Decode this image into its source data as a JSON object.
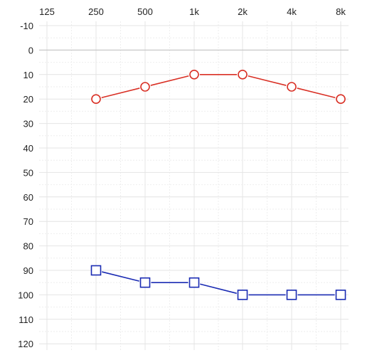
{
  "chart_data": {
    "type": "line",
    "title": "",
    "xlabel": "",
    "ylabel": "",
    "x_categories": [
      "125",
      "250",
      "500",
      "1k",
      "2k",
      "4k",
      "8k"
    ],
    "y_ticks": [
      -10,
      0,
      10,
      20,
      30,
      40,
      50,
      60,
      70,
      80,
      90,
      100,
      110,
      120
    ],
    "ylim": [
      -10,
      120
    ],
    "y_inverted": true,
    "grid": true,
    "series": [
      {
        "marker": "circle",
        "color": "#d93025",
        "x": [
          "250",
          "500",
          "1k",
          "2k",
          "4k",
          "8k"
        ],
        "values": [
          20,
          15,
          10,
          10,
          15,
          20
        ]
      },
      {
        "marker": "square",
        "color": "#1a2bb3",
        "x": [
          "250",
          "500",
          "1k",
          "2k",
          "4k",
          "8k"
        ],
        "values": [
          90,
          95,
          95,
          100,
          100,
          100
        ]
      }
    ]
  }
}
